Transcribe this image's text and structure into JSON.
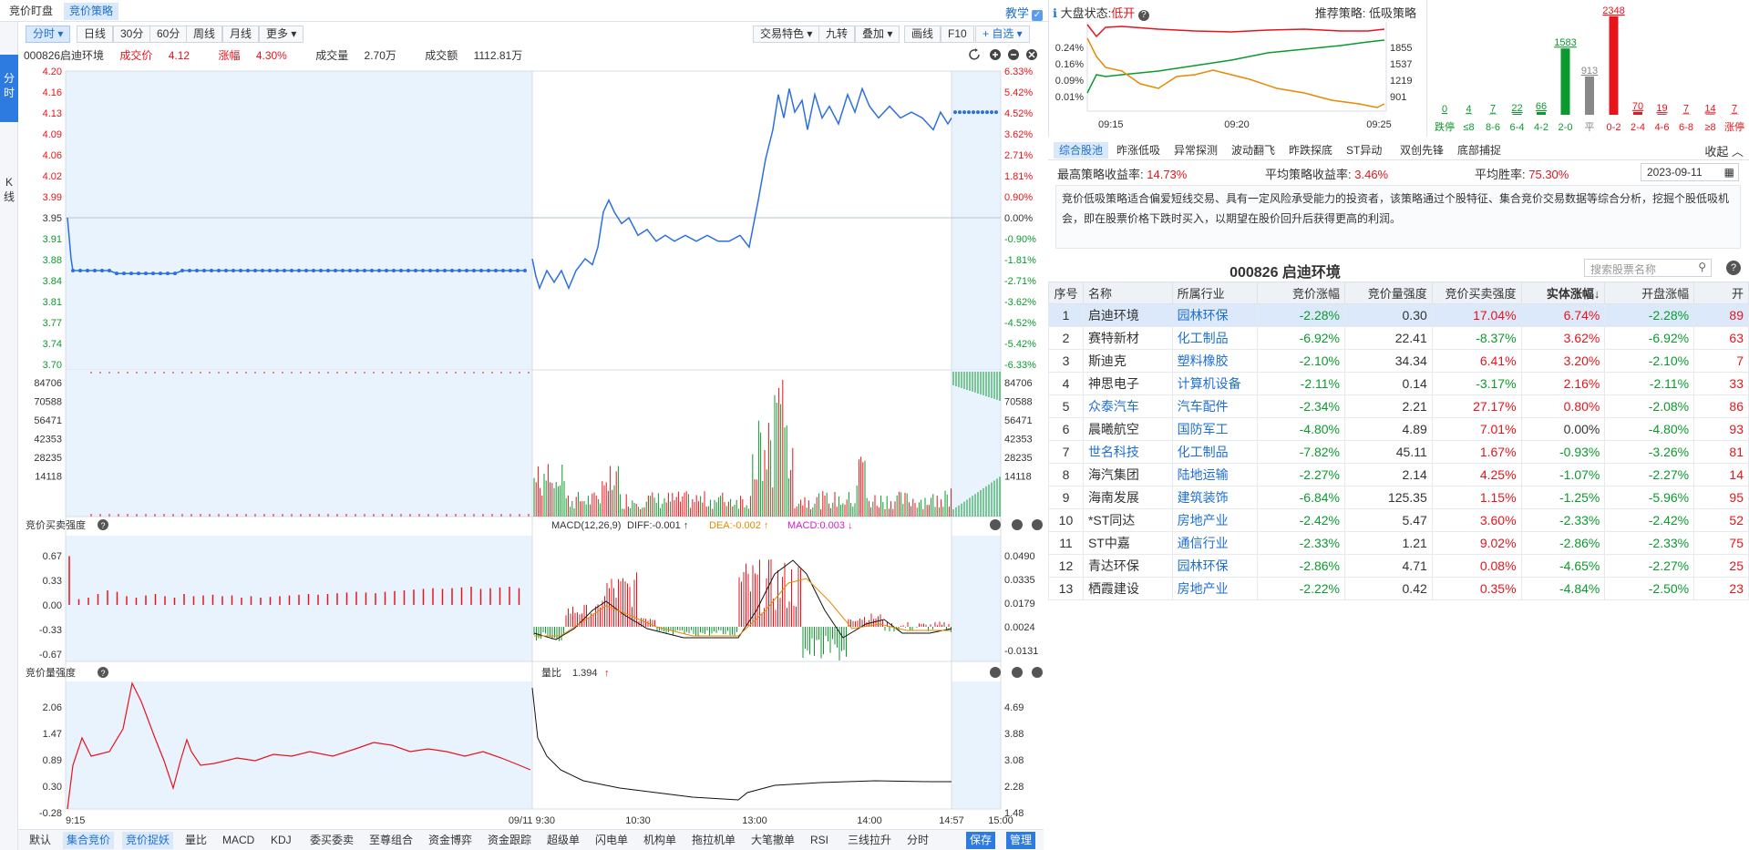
{
  "top_tabs": [
    {
      "label": "竞价盯盘",
      "active": false
    },
    {
      "label": "竞价策略",
      "active": true
    }
  ],
  "teach_label": "教学",
  "side_nav": [
    {
      "label": "分时",
      "active": true
    },
    {
      "label": "K线",
      "active": false
    }
  ],
  "toolbar": {
    "left": [
      {
        "label": "分时",
        "active": true,
        "dropdown": true
      },
      {
        "label": "日线"
      },
      {
        "label": "30分"
      },
      {
        "label": "60分"
      },
      {
        "label": "周线"
      },
      {
        "label": "月线"
      },
      {
        "label": "更多",
        "dropdown": true
      }
    ],
    "right": [
      {
        "label": "交易特色",
        "dropdown": true
      },
      {
        "label": "九转"
      },
      {
        "label": "叠加",
        "dropdown": true
      },
      {
        "label": "画线"
      },
      {
        "label": "F10"
      },
      {
        "label": "+ 自选",
        "dropdown": true
      }
    ]
  },
  "info": {
    "code_name": "000826启迪环境",
    "price_label": "成交价",
    "price": "4.12",
    "change_label": "涨幅",
    "change": "4.30%",
    "volume_label": "成交量",
    "volume": "2.70万",
    "amount_label": "成交额",
    "amount": "1112.81万"
  },
  "price_axis_left": [
    "4.20",
    "4.16",
    "4.13",
    "4.09",
    "4.06",
    "4.02",
    "3.99",
    "3.95",
    "3.91",
    "3.88",
    "3.84",
    "3.81",
    "3.77",
    "3.74",
    "3.70"
  ],
  "price_axis_right": [
    "6.33%",
    "5.42%",
    "4.52%",
    "3.62%",
    "2.71%",
    "1.81%",
    "0.90%",
    "0.00%",
    "-0.90%",
    "-1.81%",
    "-2.71%",
    "-3.62%",
    "-4.52%",
    "-5.42%",
    "-6.33%"
  ],
  "volume_axis": [
    "84706",
    "70588",
    "56471",
    "42353",
    "28235",
    "14118"
  ],
  "panel_buy": {
    "title": "竞价买卖强度",
    "axis": [
      "0.67",
      "0.33",
      "0.00",
      "-0.33",
      "-0.67"
    ]
  },
  "panel_macd": {
    "title": "MACD(12,26,9)",
    "diff": "DIFF:-0.001",
    "dea": "DEA:-0.002",
    "macd": "MACD:0.003",
    "axis": [
      "0.0490",
      "0.0335",
      "0.0179",
      "0.0024",
      "-0.0131"
    ]
  },
  "panel_qty": {
    "title": "竞价量强度",
    "axis": [
      "2.06",
      "1.47",
      "0.89",
      "0.30",
      "-0.28"
    ]
  },
  "panel_ratio": {
    "title": "量比",
    "value": "1.394",
    "axis": [
      "4.69",
      "3.88",
      "3.08",
      "2.28",
      "1.48"
    ]
  },
  "time_axis": [
    "9:15",
    "09/11 9:30",
    "10:30",
    "13:00",
    "14:00",
    "14:57",
    "15:00"
  ],
  "market": {
    "status_label": "大盘状态:",
    "status": "低开",
    "strategy_label": "推荐策略:",
    "strategy": "低吸策略",
    "left_axis": [
      "0.24%",
      "0.16%",
      "0.09%",
      "0.01%"
    ],
    "right_axis": [
      "1855",
      "1537",
      "1219",
      "901"
    ],
    "times": [
      "09:15",
      "09:20",
      "09:25"
    ]
  },
  "distribution": {
    "categories": [
      "跌停",
      "≤8",
      "8-6",
      "6-4",
      "4-2",
      "2-0",
      "平",
      "0-2",
      "2-4",
      "4-6",
      "6-8",
      "≥8",
      "涨停"
    ],
    "values": [
      0,
      4,
      7,
      22,
      66,
      1583,
      913,
      2348,
      70,
      19,
      7,
      14,
      7
    ]
  },
  "strategy_tabs": [
    "综合股池",
    "昨涨低吸",
    "异常探测",
    "波动翻飞",
    "昨跌探底",
    "ST异动",
    "双创先锋",
    "底部捕捉"
  ],
  "collapse_label": "收起",
  "stats": {
    "max_label": "最高策略收益率:",
    "max": "14.73%",
    "avg_label": "平均策略收益率:",
    "avg": "3.46%",
    "win_label": "平均胜率:",
    "win": "75.30%",
    "date": "2023-09-11"
  },
  "description": "竞价低吸策略适合偏爱短线交易、具有一定风险承受能力的投资者，该策略通过个股特征、集合竞价交易数据等综合分析，挖掘个股低吸机会，即在股票价格下跌时买入，以期望在股价回升后获得更高的利润。",
  "table_title": "000826  启迪环境",
  "search_placeholder": "搜索股票名称",
  "table": {
    "headers": [
      "序号",
      "名称",
      "所属行业",
      "竞价涨幅",
      "竞价量强度",
      "竞价买卖强度",
      "实体涨幅↓",
      "开盘涨幅",
      "开"
    ],
    "rows": [
      [
        "1",
        "启迪环境",
        "园林环保",
        "-2.28%",
        "0.30",
        "17.04%",
        "6.74%",
        "-2.28%",
        "89"
      ],
      [
        "2",
        "赛特新材",
        "化工制品",
        "-6.92%",
        "22.41",
        "-8.37%",
        "3.62%",
        "-6.92%",
        "63"
      ],
      [
        "3",
        "斯迪克",
        "塑料橡胶",
        "-2.10%",
        "34.34",
        "6.41%",
        "3.20%",
        "-2.10%",
        "7"
      ],
      [
        "4",
        "神思电子",
        "计算机设备",
        "-2.11%",
        "0.14",
        "-3.17%",
        "2.16%",
        "-2.11%",
        "33"
      ],
      [
        "5",
        "众泰汽车",
        "汽车配件",
        "-2.34%",
        "2.21",
        "27.17%",
        "0.80%",
        "-2.08%",
        "86"
      ],
      [
        "6",
        "晨曦航空",
        "国防军工",
        "-4.80%",
        "4.89",
        "7.01%",
        "0.00%",
        "-4.80%",
        "93"
      ],
      [
        "7",
        "世名科技",
        "化工制品",
        "-7.82%",
        "45.11",
        "1.67%",
        "-0.93%",
        "-3.26%",
        "81"
      ],
      [
        "8",
        "海汽集团",
        "陆地运输",
        "-2.27%",
        "2.14",
        "4.25%",
        "-1.07%",
        "-2.27%",
        "14"
      ],
      [
        "9",
        "海南发展",
        "建筑装饰",
        "-6.84%",
        "125.35",
        "1.15%",
        "-1.25%",
        "-5.96%",
        "95"
      ],
      [
        "10",
        "*ST同达",
        "房地产业",
        "-2.42%",
        "5.47",
        "3.60%",
        "-2.33%",
        "-2.42%",
        "52"
      ],
      [
        "11",
        "ST中嘉",
        "通信行业",
        "-2.33%",
        "1.21",
        "9.02%",
        "-2.86%",
        "-2.33%",
        "75"
      ],
      [
        "12",
        "青达环保",
        "园林环保",
        "-2.86%",
        "4.71",
        "0.08%",
        "-4.65%",
        "-2.27%",
        "25"
      ],
      [
        "13",
        "栖霞建设",
        "房地产业",
        "-2.22%",
        "0.42",
        "0.35%",
        "-4.84%",
        "-2.50%",
        "23"
      ]
    ]
  },
  "bottom_tabs": [
    {
      "label": "默认"
    },
    {
      "label": "集合竞价",
      "active": true
    },
    {
      "label": "竞价捉妖",
      "active": true
    },
    {
      "label": "量比"
    },
    {
      "label": "MACD"
    },
    {
      "label": "KDJ"
    },
    {
      "label": "委买委卖"
    },
    {
      "label": "至尊组合"
    },
    {
      "label": "资金博弈"
    },
    {
      "label": "资金跟踪"
    },
    {
      "label": "超级单"
    },
    {
      "label": "闪电单"
    },
    {
      "label": "机构单"
    },
    {
      "label": "拖拉机单"
    },
    {
      "label": "大笔撤单"
    },
    {
      "label": "RSI"
    },
    {
      "label": "三线拉升"
    },
    {
      "label": "分时"
    }
  ],
  "save_label": "保存",
  "manage_label": "管理",
  "colors": {
    "accent": "#1f6fd0",
    "up": "#e8141b",
    "down": "#0c9a2e",
    "price_line": "#2d6fe0",
    "auction_bg": "#e8f3fd"
  }
}
